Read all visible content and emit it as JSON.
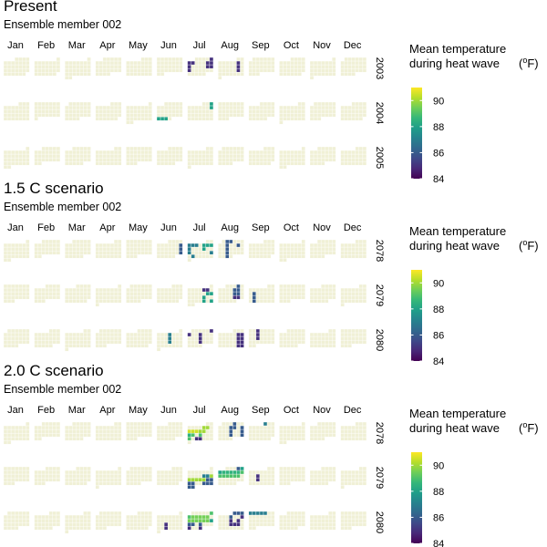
{
  "chart_data": [
    {
      "type": "heatmap",
      "title": "Present",
      "subtitle": "Ensemble member 002",
      "months": [
        "Jan",
        "Feb",
        "Mar",
        "Apr",
        "May",
        "Jun",
        "Jul",
        "Aug",
        "Sep",
        "Oct",
        "Nov",
        "Dec"
      ],
      "years": [
        "2003",
        "2004",
        "2005"
      ],
      "legend": {
        "title": [
          "Mean temperature",
          "during heat wave"
        ],
        "unit": "(oF)",
        "ticks": [
          84,
          86,
          88,
          90
        ],
        "range": [
          84,
          91
        ],
        "palette": "viridis",
        "placement": "right"
      },
      "heatwave_days": [
        {
          "date": "2003-07-05",
          "value": 85
        },
        {
          "date": "2003-07-06",
          "value": 85
        },
        {
          "date": "2003-07-07",
          "value": 85
        },
        {
          "date": "2003-07-11",
          "value": 85
        },
        {
          "date": "2003-07-12",
          "value": 85
        },
        {
          "date": "2003-07-13",
          "value": 85
        },
        {
          "date": "2003-07-18",
          "value": 85
        },
        {
          "date": "2003-07-19",
          "value": 85
        },
        {
          "date": "2003-07-20",
          "value": 85
        },
        {
          "date": "2003-08-08",
          "value": 85
        },
        {
          "date": "2003-08-15",
          "value": 85
        },
        {
          "date": "2003-08-22",
          "value": 85
        },
        {
          "date": "2004-06-27",
          "value": 88
        },
        {
          "date": "2004-06-28",
          "value": 88
        },
        {
          "date": "2004-06-29",
          "value": 88
        },
        {
          "date": "2004-07-03",
          "value": 88
        },
        {
          "date": "2004-07-10",
          "value": 88
        }
      ]
    },
    {
      "type": "heatmap",
      "title": "1.5 C scenario",
      "subtitle": "Ensemble member 002",
      "months": [
        "Jan",
        "Feb",
        "Mar",
        "Apr",
        "May",
        "Jun",
        "Jul",
        "Aug",
        "Sep",
        "Oct",
        "Nov",
        "Dec"
      ],
      "years": [
        "2078",
        "2079",
        "2080"
      ],
      "legend": {
        "title": [
          "Mean temperature",
          "during heat wave"
        ],
        "unit": "(oF)",
        "ticks": [
          84,
          86,
          88,
          90
        ],
        "range": [
          84,
          91
        ],
        "palette": "viridis",
        "placement": "right"
      },
      "heatwave_days": [
        {
          "date": "2078-06-11",
          "value": 86
        },
        {
          "date": "2078-06-18",
          "value": 86
        },
        {
          "date": "2078-06-25",
          "value": 86
        },
        {
          "date": "2078-07-03",
          "value": 87
        },
        {
          "date": "2078-07-04",
          "value": 87
        },
        {
          "date": "2078-07-05",
          "value": 87
        },
        {
          "date": "2078-07-07",
          "value": 88
        },
        {
          "date": "2078-07-08",
          "value": 88
        },
        {
          "date": "2078-07-09",
          "value": 88
        },
        {
          "date": "2078-07-10",
          "value": 87
        },
        {
          "date": "2078-07-14",
          "value": 88
        },
        {
          "date": "2078-07-17",
          "value": 87
        },
        {
          "date": "2078-07-23",
          "value": 87
        },
        {
          "date": "2078-07-25",
          "value": 87
        },
        {
          "date": "2078-08-02",
          "value": 86
        },
        {
          "date": "2078-08-03",
          "value": 86
        },
        {
          "date": "2078-08-09",
          "value": 86
        },
        {
          "date": "2078-08-12",
          "value": 86
        },
        {
          "date": "2078-08-16",
          "value": 86
        },
        {
          "date": "2078-08-23",
          "value": 86
        },
        {
          "date": "2078-08-30",
          "value": 86
        },
        {
          "date": "2079-07-06",
          "value": 85
        },
        {
          "date": "2079-07-07",
          "value": 85
        },
        {
          "date": "2079-07-14",
          "value": 88
        },
        {
          "date": "2079-07-15",
          "value": 88
        },
        {
          "date": "2079-07-20",
          "value": 88
        },
        {
          "date": "2079-07-27",
          "value": 88
        },
        {
          "date": "2079-07-29",
          "value": 88
        },
        {
          "date": "2079-08-04",
          "value": 86
        },
        {
          "date": "2079-08-10",
          "value": 86
        },
        {
          "date": "2079-08-11",
          "value": 86
        },
        {
          "date": "2079-08-17",
          "value": 86
        },
        {
          "date": "2079-08-18",
          "value": 86
        },
        {
          "date": "2079-08-24",
          "value": 85
        },
        {
          "date": "2079-08-25",
          "value": 85
        },
        {
          "date": "2079-09-11",
          "value": 86
        },
        {
          "date": "2079-09-18",
          "value": 86
        },
        {
          "date": "2079-09-25",
          "value": 86
        },
        {
          "date": "2080-06-05",
          "value": 87
        },
        {
          "date": "2080-06-12",
          "value": 87
        },
        {
          "date": "2080-06-19",
          "value": 87
        },
        {
          "date": "2080-07-06",
          "value": 85
        },
        {
          "date": "2080-07-07",
          "value": 85
        },
        {
          "date": "2080-07-10",
          "value": 85
        },
        {
          "date": "2080-07-17",
          "value": 85
        },
        {
          "date": "2080-07-24",
          "value": 85
        },
        {
          "date": "2080-08-09",
          "value": 85
        },
        {
          "date": "2080-08-10",
          "value": 85
        },
        {
          "date": "2080-08-16",
          "value": 85
        },
        {
          "date": "2080-08-17",
          "value": 85
        },
        {
          "date": "2080-08-23",
          "value": 85
        },
        {
          "date": "2080-08-24",
          "value": 85
        },
        {
          "date": "2080-08-30",
          "value": 85
        },
        {
          "date": "2080-08-31",
          "value": 85
        },
        {
          "date": "2080-09-03",
          "value": 85
        },
        {
          "date": "2080-09-10",
          "value": 85
        },
        {
          "date": "2080-09-17",
          "value": 85
        }
      ]
    },
    {
      "type": "heatmap",
      "title": "2.0 C scenario",
      "subtitle": "Ensemble member 002",
      "months": [
        "Jan",
        "Feb",
        "Mar",
        "Apr",
        "May",
        "Jun",
        "Jul",
        "Aug",
        "Sep",
        "Oct",
        "Nov",
        "Dec"
      ],
      "years": [
        "2078",
        "2079",
        "2080"
      ],
      "legend": {
        "title": [
          "Mean temperature",
          "during heat wave"
        ],
        "unit": "(oF)",
        "ticks": [
          84,
          86,
          88,
          90
        ],
        "range": [
          84,
          91
        ],
        "palette": "viridis",
        "placement": "right"
      },
      "heatwave_days": [
        {
          "date": "2078-07-07",
          "value": 90
        },
        {
          "date": "2078-07-08",
          "value": 90
        },
        {
          "date": "2078-07-10",
          "value": 90.5
        },
        {
          "date": "2078-07-11",
          "value": 90.5
        },
        {
          "date": "2078-07-12",
          "value": 90.5
        },
        {
          "date": "2078-07-13",
          "value": 90
        },
        {
          "date": "2078-07-14",
          "value": 90
        },
        {
          "date": "2078-07-17",
          "value": 88.5
        },
        {
          "date": "2078-07-18",
          "value": 89
        },
        {
          "date": "2078-07-20",
          "value": 89
        },
        {
          "date": "2078-07-24",
          "value": 89
        },
        {
          "date": "2078-07-26",
          "value": 85
        },
        {
          "date": "2078-07-27",
          "value": 85
        },
        {
          "date": "2078-08-04",
          "value": 86
        },
        {
          "date": "2078-08-10",
          "value": 86
        },
        {
          "date": "2078-08-11",
          "value": 86
        },
        {
          "date": "2078-08-13",
          "value": 86
        },
        {
          "date": "2078-08-17",
          "value": 86
        },
        {
          "date": "2078-08-20",
          "value": 86
        },
        {
          "date": "2078-08-24",
          "value": 86
        },
        {
          "date": "2078-08-27",
          "value": 86
        },
        {
          "date": "2078-09-01",
          "value": 87
        },
        {
          "date": "2079-07-13",
          "value": 87
        },
        {
          "date": "2079-07-14",
          "value": 87
        },
        {
          "date": "2079-07-15",
          "value": 90
        },
        {
          "date": "2079-07-16",
          "value": 90
        },
        {
          "date": "2079-07-17",
          "value": 90
        },
        {
          "date": "2079-07-18",
          "value": 90
        },
        {
          "date": "2079-07-19",
          "value": 90
        },
        {
          "date": "2079-07-20",
          "value": 90
        },
        {
          "date": "2079-07-21",
          "value": 86
        },
        {
          "date": "2079-07-22",
          "value": 86
        },
        {
          "date": "2079-07-23",
          "value": 86
        },
        {
          "date": "2079-07-24",
          "value": 86
        },
        {
          "date": "2079-07-27",
          "value": 86
        },
        {
          "date": "2079-07-28",
          "value": 86
        },
        {
          "date": "2079-07-29",
          "value": 86
        },
        {
          "date": "2079-07-30",
          "value": 86
        },
        {
          "date": "2079-07-31",
          "value": 86
        },
        {
          "date": "2079-08-04",
          "value": 86
        },
        {
          "date": "2079-08-05",
          "value": 88
        },
        {
          "date": "2079-08-06",
          "value": 88
        },
        {
          "date": "2079-08-07",
          "value": 88.5
        },
        {
          "date": "2079-08-08",
          "value": 88.5
        },
        {
          "date": "2079-08-09",
          "value": 88.5
        },
        {
          "date": "2079-08-10",
          "value": 88.5
        },
        {
          "date": "2079-08-11",
          "value": 88.5
        },
        {
          "date": "2079-08-12",
          "value": 89
        },
        {
          "date": "2079-08-13",
          "value": 89
        },
        {
          "date": "2079-08-14",
          "value": 89
        },
        {
          "date": "2079-08-15",
          "value": 89
        },
        {
          "date": "2079-08-16",
          "value": 89
        },
        {
          "date": "2079-08-17",
          "value": 89
        },
        {
          "date": "2079-08-18",
          "value": 89
        },
        {
          "date": "2079-09-12",
          "value": 85
        },
        {
          "date": "2079-09-19",
          "value": 85
        },
        {
          "date": "2080-06-18",
          "value": 85
        },
        {
          "date": "2080-06-25",
          "value": 85
        },
        {
          "date": "2080-07-06",
          "value": 89
        },
        {
          "date": "2080-07-07",
          "value": 89
        },
        {
          "date": "2080-07-08",
          "value": 89.5
        },
        {
          "date": "2080-07-09",
          "value": 89.5
        },
        {
          "date": "2080-07-10",
          "value": 89.5
        },
        {
          "date": "2080-07-11",
          "value": 89.5
        },
        {
          "date": "2080-07-12",
          "value": 89.5
        },
        {
          "date": "2080-07-14",
          "value": 89.5
        },
        {
          "date": "2080-07-15",
          "value": 89.5
        },
        {
          "date": "2080-07-16",
          "value": 89.5
        },
        {
          "date": "2080-07-17",
          "value": 89.5
        },
        {
          "date": "2080-07-18",
          "value": 89.5
        },
        {
          "date": "2080-07-19",
          "value": 89.5
        },
        {
          "date": "2080-07-20",
          "value": 88
        },
        {
          "date": "2080-07-21",
          "value": 86
        },
        {
          "date": "2080-07-22",
          "value": 86
        },
        {
          "date": "2080-07-24",
          "value": 86
        },
        {
          "date": "2080-07-28",
          "value": 85
        },
        {
          "date": "2080-07-31",
          "value": 85
        },
        {
          "date": "2080-08-01",
          "value": 86
        },
        {
          "date": "2080-08-02",
          "value": 86
        },
        {
          "date": "2080-08-03",
          "value": 86
        },
        {
          "date": "2080-08-07",
          "value": 86
        },
        {
          "date": "2080-08-10",
          "value": 85
        },
        {
          "date": "2080-08-14",
          "value": 85
        },
        {
          "date": "2080-08-16",
          "value": 85
        },
        {
          "date": "2080-08-21",
          "value": 85
        },
        {
          "date": "2080-08-22",
          "value": 85
        },
        {
          "date": "2080-08-23",
          "value": 85
        },
        {
          "date": "2080-09-01",
          "value": 87
        },
        {
          "date": "2080-09-02",
          "value": 87
        },
        {
          "date": "2080-09-03",
          "value": 87
        },
        {
          "date": "2080-09-04",
          "value": 87
        },
        {
          "date": "2080-09-05",
          "value": 87
        }
      ]
    }
  ],
  "colors": {
    "empty_day": "#f0f0d6",
    "day_border": "#ffffff",
    "viridis": [
      "#440154",
      "#482878",
      "#3e4989",
      "#31688e",
      "#26828e",
      "#1f9e89",
      "#35b779",
      "#6ece58",
      "#b5de2b",
      "#fde725"
    ]
  }
}
